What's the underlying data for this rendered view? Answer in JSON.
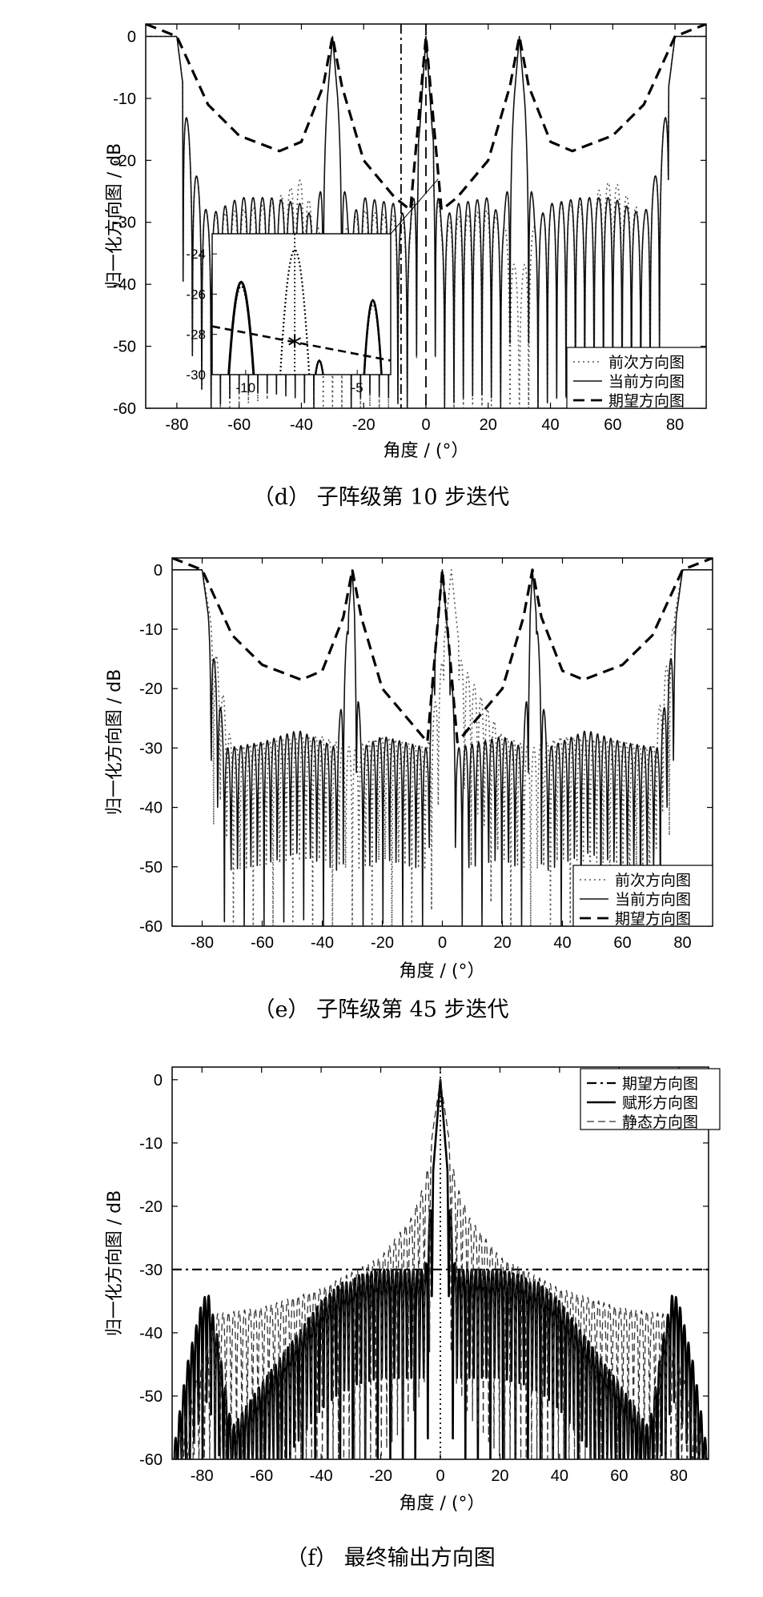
{
  "chart_data": [
    {
      "type": "line",
      "caption": "（d） 子阵级第 10 步迭代",
      "xlabel": "角度 / (°）",
      "ylabel": "归一化方向图 / dB",
      "xlim": [
        -90,
        90
      ],
      "ylim": [
        -60,
        2
      ],
      "xticks": [
        -80,
        -60,
        -40,
        -20,
        0,
        20,
        40,
        60,
        80
      ],
      "yticks": [
        0,
        -10,
        -20,
        -30,
        -40,
        -50,
        -60
      ],
      "legend_position": "bottom-right",
      "series": [
        {
          "name": "前次方向图",
          "style": "dotted",
          "sidelobe_level": -29,
          "steer": 0,
          "x": [
            -90,
            -80,
            -75,
            -70,
            -60,
            -50,
            -40,
            -35,
            -30,
            -25,
            -20,
            -10,
            -5,
            -2,
            0,
            2,
            5,
            10,
            20,
            25,
            30,
            35,
            40,
            50,
            60,
            70,
            75,
            80,
            90
          ],
          "y": [
            0,
            0,
            -20,
            -29,
            -28,
            -27,
            -23,
            -30,
            -40,
            -30,
            -28,
            -29,
            -31,
            -15,
            0,
            -15,
            -31,
            -29,
            -28,
            -30,
            -40,
            -30,
            -27,
            -27,
            -23,
            -29,
            -20,
            0,
            0
          ]
        },
        {
          "name": "当前方向图",
          "style": "solid",
          "sidelobe_level": -28,
          "steer": 0,
          "x": [
            -90,
            -80,
            -75,
            -70,
            -60,
            -50,
            -40,
            -35,
            -30,
            -25,
            -20,
            -10,
            -5,
            -2,
            0,
            2,
            5,
            10,
            20,
            25,
            30,
            35,
            40,
            50,
            60,
            70,
            75,
            80,
            90
          ],
          "y": [
            0,
            0,
            -20,
            -29,
            -26,
            -26,
            -27,
            -30,
            0,
            -30,
            -26,
            -27,
            -30,
            -15,
            0,
            -15,
            -30,
            -27,
            -26,
            -30,
            0,
            -30,
            -27,
            -26,
            -26,
            -29,
            -20,
            0,
            0
          ]
        },
        {
          "name": "期望方向图",
          "style": "dashed",
          "x": [
            -90,
            -80,
            -70,
            -60,
            -47,
            -40,
            -33,
            -30,
            -27,
            -20,
            -10,
            -5,
            0,
            5,
            10,
            20,
            27,
            30,
            33,
            40,
            47,
            60,
            70,
            80,
            90
          ],
          "y": [
            2,
            0,
            -11,
            -16,
            -18.5,
            -17,
            -8,
            0,
            -8,
            -20,
            -26,
            -28,
            0,
            -28,
            -26,
            -20,
            -8,
            0,
            -8,
            -17,
            -18.5,
            -16,
            -11,
            0,
            2
          ]
        }
      ],
      "vertical_lines": [
        {
          "x": -8,
          "style": "dashdot"
        },
        {
          "x": 0,
          "style": "dashed"
        }
      ],
      "inset": {
        "xlim": [
          -11.5,
          -3.5
        ],
        "ylim": [
          -30,
          -23
        ],
        "xticks": [
          -10,
          -5
        ],
        "yticks": [
          -24,
          -26,
          -28,
          -30
        ],
        "marker": {
          "x": -7.8,
          "y": -28.5,
          "symbol": "*"
        }
      }
    },
    {
      "type": "line",
      "caption": "（e） 子阵级第 45 步迭代",
      "xlabel": "角度 / (°）",
      "ylabel": "归一化方向图 / dB",
      "xlim": [
        -90,
        90
      ],
      "ylim": [
        -60,
        2
      ],
      "xticks": [
        -80,
        -60,
        -40,
        -20,
        0,
        20,
        40,
        60,
        80
      ],
      "yticks": [
        0,
        -10,
        -20,
        -30,
        -40,
        -50,
        -60
      ],
      "legend_position": "bottom-right",
      "series": [
        {
          "name": "前次方向图",
          "style": "dotted",
          "steer": 3,
          "x": [
            -90,
            -80,
            -70,
            -60,
            -40,
            -30,
            -20,
            -5,
            0,
            3,
            6,
            20,
            30,
            40,
            60,
            70,
            80,
            90
          ],
          "y": [
            0,
            0,
            -30,
            -29,
            -28,
            -30,
            -28,
            -30,
            -15,
            0,
            -15,
            -28,
            -30,
            -28,
            -29,
            -30,
            0,
            0
          ]
        },
        {
          "name": "当前方向图",
          "style": "solid",
          "sidelobe_level": -29,
          "steer": 0,
          "x": [
            -90,
            -80,
            -72,
            -60,
            -48,
            -35,
            -30,
            -27,
            -20,
            -5,
            0,
            5,
            20,
            27,
            30,
            35,
            48,
            60,
            72,
            80,
            90
          ],
          "y": [
            0,
            0,
            -30,
            -29,
            -27,
            -30,
            0,
            -30,
            -28,
            -30,
            0,
            -30,
            -28,
            -30,
            0,
            -30,
            -27,
            -29,
            -30,
            0,
            0
          ]
        },
        {
          "name": "期望方向图",
          "style": "dashed",
          "x": [
            -90,
            -80,
            -70,
            -60,
            -47,
            -40,
            -33,
            -30,
            -27,
            -20,
            -10,
            -5,
            0,
            5,
            10,
            20,
            27,
            30,
            33,
            40,
            47,
            60,
            70,
            80,
            90
          ],
          "y": [
            2,
            0,
            -11,
            -16,
            -18.5,
            -17,
            -8,
            0,
            -8,
            -20,
            -26,
            -29,
            0,
            -29,
            -26,
            -20,
            -8,
            0,
            -8,
            -17,
            -18.5,
            -16,
            -11,
            0,
            2
          ]
        }
      ]
    },
    {
      "type": "line",
      "caption": "（f） 最终输出方向图",
      "xlabel": "角度 / (°）",
      "ylabel": "归一化方向图 / dB",
      "xlim": [
        -90,
        90
      ],
      "ylim": [
        -60,
        2
      ],
      "xticks": [
        -80,
        -60,
        -40,
        -20,
        0,
        20,
        40,
        60,
        80
      ],
      "yticks": [
        0,
        -10,
        -20,
        -30,
        -40,
        -50,
        -60
      ],
      "legend_position": "top-right",
      "series": [
        {
          "name": "期望方向图",
          "style": "dashdot",
          "x": [
            -90,
            90
          ],
          "y": [
            -30,
            -30
          ]
        },
        {
          "name": "赋形方向图",
          "style": "solid-bold",
          "x": [
            -90,
            -85,
            -80,
            -78,
            -75,
            -70,
            -60,
            -40,
            -33,
            -30,
            -28,
            -20,
            -5,
            0,
            5,
            20,
            28,
            30,
            33,
            40,
            60,
            70,
            75,
            78,
            80,
            85,
            90
          ],
          "y": [
            -60,
            -45,
            -35,
            -33.5,
            -40,
            -55,
            -48,
            -35,
            -32,
            -32,
            -31,
            -30,
            -30,
            0,
            -30,
            -30,
            -31,
            -32,
            -32,
            -35,
            -48,
            -55,
            -40,
            -33.5,
            -35,
            -45,
            -60
          ]
        },
        {
          "name": "静态方向图",
          "style": "dashed-thin",
          "x": [
            -90,
            -75,
            -60,
            -40,
            -20,
            -10,
            -5,
            0,
            5,
            10,
            20,
            40,
            60,
            75,
            90
          ],
          "y": [
            -60,
            -37,
            -36,
            -33,
            -28,
            -22,
            -16,
            0,
            -16,
            -22,
            -28,
            -33,
            -36,
            -37,
            -60
          ]
        }
      ],
      "vertical_lines": [
        {
          "x": 0,
          "style": "dotted"
        }
      ]
    }
  ]
}
